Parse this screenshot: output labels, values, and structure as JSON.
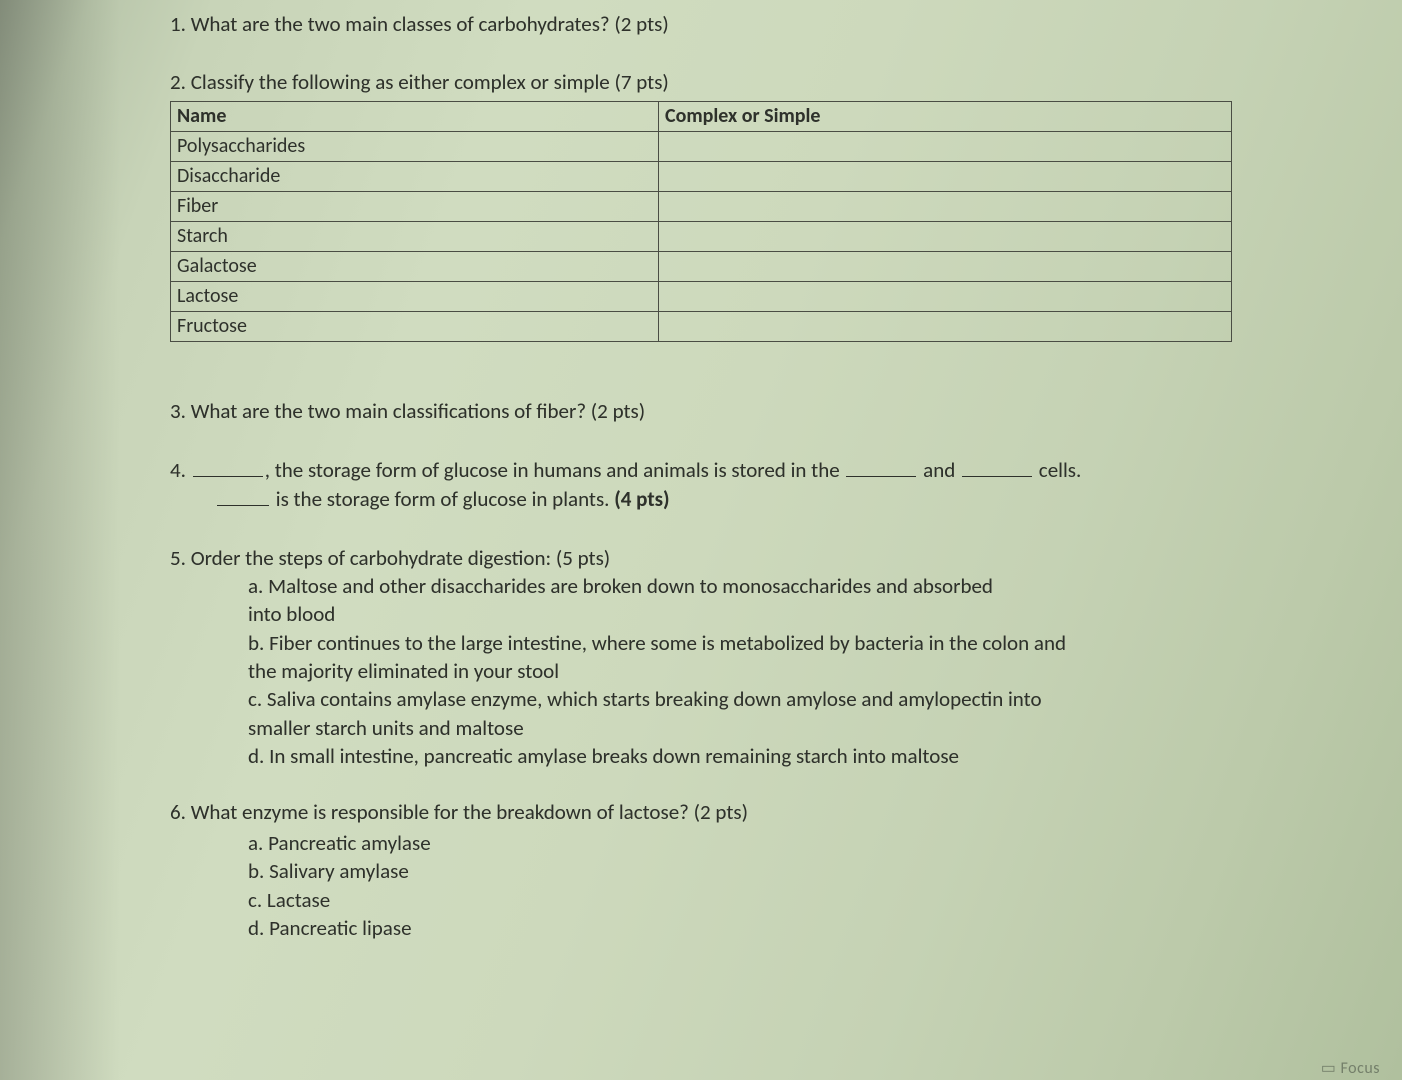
{
  "q1": {
    "text": "1. What are the two main classes of carbohydrates? (2 pts)"
  },
  "q2": {
    "prompt": "2. Classify the following as either complex or simple (7 pts)",
    "header": {
      "name": "Name",
      "class": "Complex or Simple"
    },
    "rows": [
      {
        "name": "Polysaccharides",
        "class": ""
      },
      {
        "name": "Disaccharide",
        "class": ""
      },
      {
        "name": "Fiber",
        "class": ""
      },
      {
        "name": "Starch",
        "class": ""
      },
      {
        "name": "Galactose",
        "class": ""
      },
      {
        "name": "Lactose",
        "class": ""
      },
      {
        "name": "Fructose",
        "class": ""
      }
    ]
  },
  "q3": {
    "text": "3. What are the two main classifications of fiber? (2 pts)"
  },
  "q4": {
    "lead": "4. ",
    "seg1": ", the storage form of glucose in humans and animals is stored in the ",
    "seg_and": " and ",
    "seg_cells": " cells.",
    "line2_tail": " is the storage form of glucose in plants. ",
    "pts": "(4 pts)"
  },
  "q5": {
    "prompt": "5. Order the steps of carbohydrate digestion: (5 pts)",
    "a1": "a. Maltose and other disaccharides are broken down to monosaccharides and absorbed",
    "a2": "into blood",
    "b1": "b. Fiber continues to the large intestine, where some is metabolized by bacteria in the colon and",
    "b2": "the majority eliminated in your stool",
    "c1": "c. Saliva contains amylase enzyme, which starts breaking down amylose and amylopectin into",
    "c2": "smaller starch units and maltose",
    "d1": "d. In small intestine, pancreatic amylase breaks down remaining starch into maltose"
  },
  "q6": {
    "prompt": "6. What enzyme is responsible for the breakdown of lactose? (2 pts)",
    "a": "a. Pancreatic amylase",
    "b": "b. Salivary amylase",
    "c": "c. Lactase",
    "d": "d. Pancreatic lipase"
  },
  "footer_focus": "Focus"
}
